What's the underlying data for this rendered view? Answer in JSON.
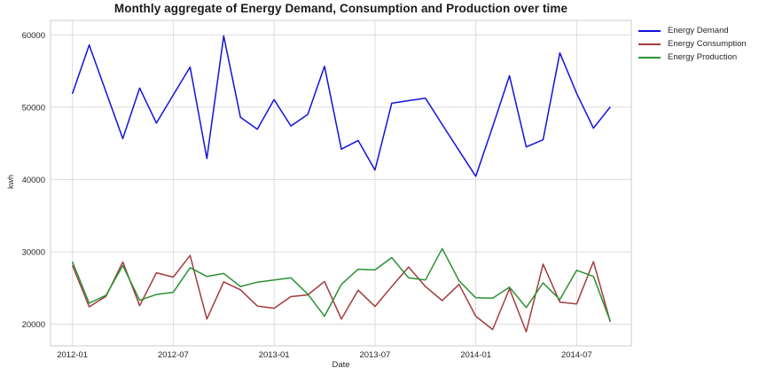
{
  "title": "Monthly aggregate of Energy Demand, Consumption and Production over time",
  "axes": {
    "xlabel": "Date",
    "ylabel": "kwh",
    "ytick_labels": [
      "20000",
      "30000",
      "40000",
      "50000",
      "60000"
    ],
    "xtick_labels": [
      "2012-01",
      "2012-07",
      "2013-01",
      "2013-07",
      "2014-01",
      "2014-07"
    ]
  },
  "chart_data": {
    "type": "line",
    "title": "Monthly aggregate of Energy Demand, Consumption and Production over time",
    "xlabel": "Date",
    "ylabel": "kwh",
    "grid": true,
    "legend_position": "outside-right-top",
    "ylim": [
      17000,
      62000
    ],
    "xlim_month_index": [
      -1.3,
      33.25
    ],
    "yticks": [
      20000,
      30000,
      40000,
      50000,
      60000
    ],
    "xticks_month_index": [
      0,
      6,
      12,
      18,
      24,
      30
    ],
    "xtick_labels": [
      "2012-01",
      "2012-07",
      "2013-01",
      "2013-07",
      "2014-01",
      "2014-07"
    ],
    "x": [
      "2012-01",
      "2012-02",
      "2012-03",
      "2012-04",
      "2012-05",
      "2012-06",
      "2012-07",
      "2012-08",
      "2012-09",
      "2012-10",
      "2012-11",
      "2012-12",
      "2013-01",
      "2013-02",
      "2013-03",
      "2013-04",
      "2013-05",
      "2013-06",
      "2013-07",
      "2013-08",
      "2013-09",
      "2013-10",
      "2013-11",
      "2013-12",
      "2014-01",
      "2014-02",
      "2014-03",
      "2014-04",
      "2014-05",
      "2014-06",
      "2014-07",
      "2014-08",
      "2014-09"
    ],
    "series": [
      {
        "name": "Energy Demand",
        "color": "#1212dd",
        "values": [
          51850,
          58600,
          52100,
          45650,
          52650,
          47800,
          51700,
          55550,
          42900,
          59850,
          48600,
          46950,
          51050,
          47400,
          49000,
          55650,
          44200,
          45400,
          41300,
          50550,
          50900,
          51250,
          47600,
          44000,
          40450,
          47300,
          54350,
          44500,
          45500,
          57500,
          51900,
          47100,
          50050
        ]
      },
      {
        "name": "Energy Consumption",
        "color": "#a33c3c",
        "values": [
          28150,
          22400,
          23850,
          28600,
          22550,
          27100,
          26500,
          29500,
          20700,
          25850,
          24750,
          22500,
          22200,
          23800,
          24050,
          25900,
          20700,
          24700,
          22450,
          25200,
          27900,
          25200,
          23250,
          25500,
          21100,
          19250,
          24900,
          18950,
          28300,
          23050,
          22800,
          28650,
          20300
        ]
      },
      {
        "name": "Energy Production",
        "color": "#2a9132",
        "values": [
          28650,
          22900,
          24000,
          28100,
          23300,
          24100,
          24400,
          27800,
          26600,
          27000,
          25200,
          25800,
          26100,
          26400,
          24150,
          21100,
          25500,
          27600,
          27500,
          29200,
          26400,
          26100,
          30450,
          26000,
          23650,
          23600,
          25100,
          22300,
          25700,
          23400,
          27450,
          26600,
          20400
        ]
      }
    ]
  }
}
